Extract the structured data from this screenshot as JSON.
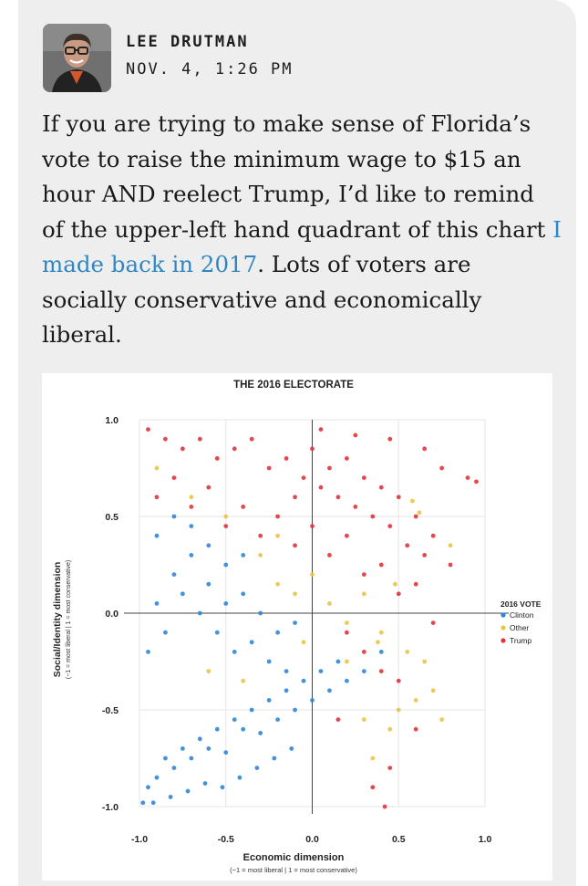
{
  "post": {
    "author": "LEE DRUTMAN",
    "timestamp": "NOV. 4, 1:26 PM",
    "text_before": "If you are trying to make sense of Florida’s vote to raise the minimum wage to $15 an hour AND reelect Trump, I’d like to remind of the upper-left hand quadrant of this chart ",
    "link_text": "I made back in 2017",
    "text_after": ". Lots of voters are socially conservative and economically liberal."
  },
  "colors": {
    "card_bg": "#eeeeee",
    "link": "#2f86c4",
    "clinton": "#2f86d8",
    "other": "#e8c547",
    "trump": "#e0343a"
  },
  "chart_data": {
    "type": "scatter",
    "title": "THE 2016 ELECTORATE",
    "xlabel": "Economic dimension",
    "xlabel_sub": "(−1 = most liberal | 1 = most conservative)",
    "ylabel": "Social/Identity dimension",
    "ylabel_sub": "(−1 = most liberal | 1 = most conservative)",
    "xlim": [
      -1.0,
      1.0
    ],
    "ylim": [
      -1.0,
      1.0
    ],
    "xticks": [
      "-1.0",
      "-0.5",
      "0.0",
      "0.5",
      "1.0"
    ],
    "yticks": [
      "1.0",
      "0.5",
      "0.0",
      "-0.5",
      "-1.0"
    ],
    "grid": true,
    "legend": {
      "title": "2016 VOTE",
      "position": "right",
      "entries": [
        "Clinton",
        "Other",
        "Trump"
      ]
    },
    "series": [
      {
        "name": "Clinton",
        "color": "#2f86d8",
        "points": [
          [
            -0.95,
            -0.9
          ],
          [
            -0.9,
            -0.85
          ],
          [
            -0.85,
            -0.75
          ],
          [
            -0.8,
            -0.8
          ],
          [
            -0.75,
            -0.7
          ],
          [
            -0.7,
            -0.75
          ],
          [
            -0.65,
            -0.65
          ],
          [
            -0.6,
            -0.7
          ],
          [
            -0.55,
            -0.6
          ],
          [
            -0.5,
            -0.72
          ],
          [
            -0.45,
            -0.55
          ],
          [
            -0.4,
            -0.6
          ],
          [
            -0.35,
            -0.5
          ],
          [
            -0.3,
            -0.62
          ],
          [
            -0.25,
            -0.45
          ],
          [
            -0.2,
            -0.55
          ],
          [
            -0.15,
            -0.4
          ],
          [
            -0.1,
            -0.5
          ],
          [
            -0.05,
            -0.35
          ],
          [
            0.0,
            -0.45
          ],
          [
            0.05,
            -0.3
          ],
          [
            0.1,
            -0.4
          ],
          [
            0.15,
            -0.25
          ],
          [
            0.2,
            -0.35
          ],
          [
            0.3,
            -0.3
          ],
          [
            0.4,
            -0.2
          ],
          [
            -0.95,
            -0.2
          ],
          [
            -0.9,
            0.05
          ],
          [
            -0.85,
            -0.1
          ],
          [
            -0.8,
            0.2
          ],
          [
            -0.75,
            0.1
          ],
          [
            -0.7,
            0.3
          ],
          [
            -0.65,
            0.0
          ],
          [
            -0.6,
            0.15
          ],
          [
            -0.55,
            -0.1
          ],
          [
            -0.5,
            0.05
          ],
          [
            -0.45,
            -0.2
          ],
          [
            -0.4,
            0.1
          ],
          [
            -0.35,
            -0.15
          ],
          [
            -0.3,
            0.0
          ],
          [
            -0.25,
            -0.25
          ],
          [
            -0.2,
            -0.1
          ],
          [
            -0.15,
            -0.3
          ],
          [
            -0.1,
            -0.05
          ],
          [
            -0.9,
            0.4
          ],
          [
            -0.8,
            0.5
          ],
          [
            -0.7,
            0.45
          ],
          [
            -0.6,
            0.35
          ],
          [
            -0.5,
            0.25
          ],
          [
            -0.4,
            0.3
          ],
          [
            -0.98,
            -0.98
          ],
          [
            -0.92,
            -0.98
          ],
          [
            -0.82,
            -0.95
          ],
          [
            -0.72,
            -0.92
          ],
          [
            -0.62,
            -0.88
          ],
          [
            -0.52,
            -0.9
          ],
          [
            -0.42,
            -0.85
          ],
          [
            -0.32,
            -0.8
          ],
          [
            -0.22,
            -0.75
          ],
          [
            -0.12,
            -0.7
          ]
        ]
      },
      {
        "name": "Other",
        "color": "#e8c547",
        "points": [
          [
            -0.9,
            0.75
          ],
          [
            -0.7,
            0.6
          ],
          [
            -0.5,
            0.5
          ],
          [
            -0.3,
            0.3
          ],
          [
            -0.2,
            0.15
          ],
          [
            -0.1,
            0.1
          ],
          [
            0.0,
            0.2
          ],
          [
            0.1,
            0.05
          ],
          [
            0.2,
            -0.05
          ],
          [
            0.3,
            0.1
          ],
          [
            0.4,
            -0.1
          ],
          [
            0.45,
            -0.6
          ],
          [
            0.5,
            -0.5
          ],
          [
            0.55,
            -0.2
          ],
          [
            0.6,
            -0.45
          ],
          [
            0.65,
            -0.25
          ],
          [
            0.7,
            -0.4
          ],
          [
            0.75,
            -0.55
          ],
          [
            0.8,
            0.35
          ],
          [
            -0.6,
            -0.3
          ],
          [
            -0.4,
            -0.35
          ],
          [
            0.3,
            -0.55
          ],
          [
            0.35,
            -0.75
          ],
          [
            -0.2,
            0.4
          ],
          [
            0.58,
            0.58
          ],
          [
            0.62,
            0.52
          ],
          [
            0.48,
            0.15
          ],
          [
            0.38,
            -0.15
          ],
          [
            0.2,
            -0.25
          ],
          [
            -0.05,
            -0.15
          ]
        ]
      },
      {
        "name": "Trump",
        "color": "#e0343a",
        "points": [
          [
            -0.95,
            0.95
          ],
          [
            -0.85,
            0.9
          ],
          [
            -0.75,
            0.85
          ],
          [
            -0.65,
            0.9
          ],
          [
            -0.55,
            0.8
          ],
          [
            -0.45,
            0.85
          ],
          [
            -0.35,
            0.9
          ],
          [
            -0.25,
            0.75
          ],
          [
            -0.15,
            0.8
          ],
          [
            -0.05,
            0.7
          ],
          [
            0.0,
            0.85
          ],
          [
            0.05,
            0.65
          ],
          [
            0.1,
            0.75
          ],
          [
            0.15,
            0.6
          ],
          [
            0.2,
            0.8
          ],
          [
            0.25,
            0.55
          ],
          [
            0.3,
            0.7
          ],
          [
            0.35,
            0.5
          ],
          [
            0.4,
            0.65
          ],
          [
            0.45,
            0.45
          ],
          [
            0.5,
            0.6
          ],
          [
            0.55,
            0.35
          ],
          [
            0.6,
            0.5
          ],
          [
            0.65,
            0.3
          ],
          [
            0.7,
            0.4
          ],
          [
            0.8,
            0.25
          ],
          [
            0.9,
            0.7
          ],
          [
            0.95,
            0.68
          ],
          [
            -0.9,
            0.6
          ],
          [
            -0.8,
            0.7
          ],
          [
            -0.7,
            0.55
          ],
          [
            -0.6,
            0.65
          ],
          [
            -0.5,
            0.45
          ],
          [
            -0.4,
            0.55
          ],
          [
            -0.3,
            0.4
          ],
          [
            -0.2,
            0.5
          ],
          [
            -0.1,
            0.35
          ],
          [
            0.0,
            0.45
          ],
          [
            0.1,
            0.3
          ],
          [
            0.2,
            0.4
          ],
          [
            0.3,
            0.2
          ],
          [
            0.4,
            0.25
          ],
          [
            0.5,
            0.1
          ],
          [
            0.6,
            0.15
          ],
          [
            0.7,
            -0.05
          ],
          [
            0.2,
            -0.1
          ],
          [
            0.3,
            -0.2
          ],
          [
            0.4,
            -0.3
          ],
          [
            0.5,
            -0.35
          ],
          [
            0.6,
            -0.6
          ],
          [
            0.45,
            -0.8
          ],
          [
            0.35,
            -0.9
          ],
          [
            0.42,
            -1.0
          ],
          [
            0.15,
            -0.55
          ],
          [
            -0.1,
            0.6
          ],
          [
            0.05,
            0.95
          ],
          [
            0.25,
            0.92
          ],
          [
            0.45,
            0.9
          ],
          [
            0.65,
            0.85
          ],
          [
            0.75,
            0.75
          ]
        ]
      }
    ]
  }
}
